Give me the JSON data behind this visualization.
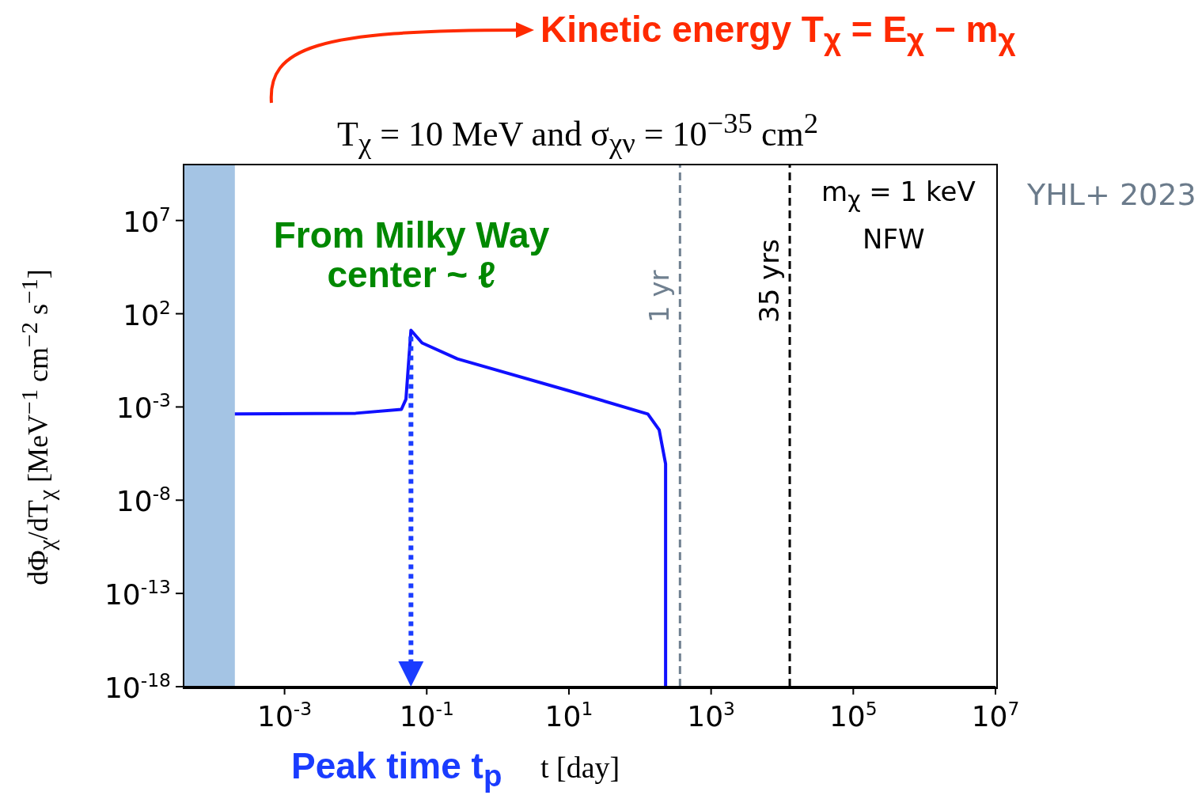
{
  "chart_data": {
    "type": "line",
    "title": "T$_{χ}$ = 10 MeV and σ$_{χν}$ = 10$^{−35}$ cm$^{2}$",
    "xlabel": "t [day]",
    "ylabel": "dΦ$_{χ}$/dT$_{χ}$ [MeV$^{−1}$ cm$^{−2}$ s$^{−1}$]",
    "log": "xy",
    "marker": "none",
    "line_style": "solid",
    "xlim": [
      3.8e-05,
      10000000.0
    ],
    "xticks": [
      {
        "value": 0.001,
        "label": "10$^{-3}$"
      },
      {
        "value": 0.1,
        "label": "10$^{-1}$"
      },
      {
        "value": 10,
        "label": "10$^{1}$"
      },
      {
        "value": 1000,
        "label": "10$^{3}$"
      },
      {
        "value": 100000,
        "label": "10$^{5}$"
      },
      {
        "value": 10000000,
        "label": "10$^{7}$"
      }
    ],
    "ylim": [
      1e-18,
      10000000000.0
    ],
    "yticks": [
      {
        "value": 1e-18,
        "label": "10$^{-18}$"
      },
      {
        "value": 1e-13,
        "label": "10$^{-13}$"
      },
      {
        "value": 1e-08,
        "label": "10$^{-8}$"
      },
      {
        "value": 0.001,
        "label": "10$^{-3}$"
      },
      {
        "value": 100,
        "label": "10$^{2}$"
      },
      {
        "value": 10000000,
        "label": "10$^{7}$"
      }
    ],
    "x": [
      0.0002,
      0.01,
      0.044,
      0.051,
      0.06,
      0.086,
      0.27,
      10.5,
      129,
      186,
      229,
      229
    ],
    "series": [
      {
        "color": "#1010ff",
        "values": [
          0.00042,
          0.00046,
          0.00074,
          0.0026,
          13,
          2.7,
          0.38,
          0.007,
          0.00042,
          5.9e-05,
          8.9e-07,
          1e-18
        ]
      }
    ],
    "ref_lines": [
      {
        "axis": "x",
        "value": 365,
        "label": "1 yr",
        "color": "#708090",
        "line_style": "dashed"
      },
      {
        "axis": "x",
        "value": 12775,
        "label": "35 yrs",
        "color": "#000000",
        "line_style": "dashed"
      }
    ],
    "bands": [
      {
        "axis": "x",
        "from": 3.8e-05,
        "to": 0.0002,
        "color": "#a4c4e4"
      }
    ],
    "annotations": [
      "Kinetic energy T$_{χ}$ = E$_{χ}$ − m$_{χ}$",
      "From Milky Way center ~ ℓ",
      "Peak time t$_{p}$",
      "m$_{χ}$ = 1 keV",
      "NFW",
      "YHL+ 2023"
    ]
  }
}
